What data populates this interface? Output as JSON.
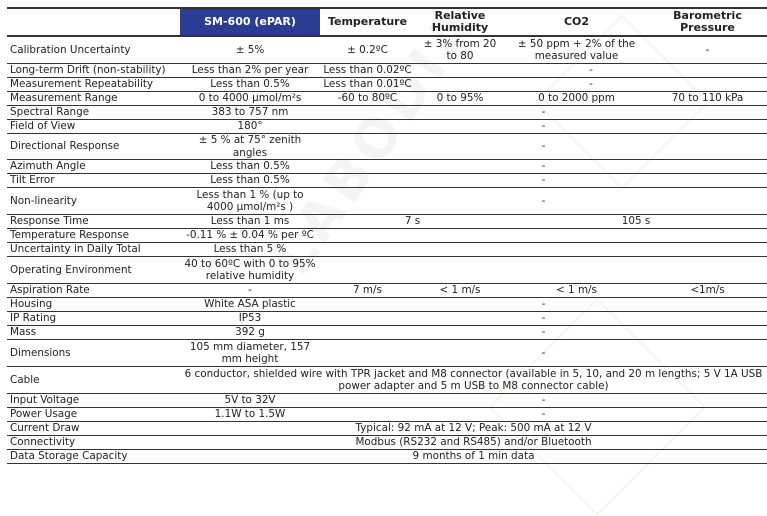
{
  "header": [
    "",
    "SM-600 (ePAR)",
    "Temperature",
    "Relative Humidity",
    "CO2",
    "Barometric Pressure"
  ],
  "rows": [
    {
      "label": "Calibration Uncertainty",
      "tall": true,
      "cells": [
        {
          "text": "± 5%"
        },
        {
          "text": "± 0.2ºC"
        },
        {
          "text": "± 3% from 20 to 80"
        },
        {
          "text": "± 50 ppm + 2% of the measured value"
        },
        {
          "text": "-"
        }
      ]
    },
    {
      "label": "Long-term Drift (non-stability)",
      "cells": [
        {
          "text": "Less than 2% per year"
        },
        {
          "text": "Less than 0.02ºC"
        },
        {
          "text": "-",
          "span": 3
        }
      ]
    },
    {
      "label": "Measurement Repeatability",
      "cells": [
        {
          "text": "Less than 0.5%"
        },
        {
          "text": "Less than 0.01ºC"
        },
        {
          "text": "-",
          "span": 3
        }
      ]
    },
    {
      "label": "Measurement Range",
      "cells": [
        {
          "text": "0 to 4000 µmol/m²s"
        },
        {
          "text": "-60 to 80ºC"
        },
        {
          "text": "0 to 95%"
        },
        {
          "text": "0 to 2000 ppm"
        },
        {
          "text": "70 to 110 kPa"
        }
      ]
    },
    {
      "label": "Spectral Range",
      "cells": [
        {
          "text": "383 to 757 nm"
        },
        {
          "text": "-",
          "span": 4
        }
      ]
    },
    {
      "label": "Field of View",
      "cells": [
        {
          "text": "180°"
        },
        {
          "text": "-",
          "span": 4
        }
      ]
    },
    {
      "label": "Directional Response",
      "cells": [
        {
          "text": "± 5 % at 75° zenith angles"
        },
        {
          "text": "-",
          "span": 4
        }
      ]
    },
    {
      "label": "Azimuth Angle",
      "cells": [
        {
          "text": "Less than 0.5%"
        },
        {
          "text": "-",
          "span": 4
        }
      ]
    },
    {
      "label": "Tilt Error",
      "cells": [
        {
          "text": "Less than 0.5%"
        },
        {
          "text": "-",
          "span": 4
        }
      ]
    },
    {
      "label": "Non-linearity",
      "tall": true,
      "cells": [
        {
          "text": "Less than 1 % (up to 4000 µmol/m²s )"
        },
        {
          "text": "-",
          "span": 4
        }
      ]
    },
    {
      "label": "Response Time",
      "cells": [
        {
          "text": "Less than 1 ms"
        },
        {
          "text": "7 s",
          "span": 2
        },
        {
          "text": "105 s",
          "span": 2
        }
      ]
    },
    {
      "label": "Temperature Response",
      "cells": [
        {
          "text": "-0.11 % ± 0.04 % per ºC"
        },
        {
          "text": "",
          "span": 4
        }
      ]
    },
    {
      "label": "Uncertainty in Daily Total",
      "cells": [
        {
          "text": "Less than 5 %"
        },
        {
          "text": "",
          "span": 4
        }
      ]
    },
    {
      "label": "Operating Environment",
      "tall": true,
      "cells": [
        {
          "text": "40 to 60ºC with 0 to 95% relative humidity"
        },
        {
          "text": "",
          "span": 4
        }
      ]
    },
    {
      "label": "Aspiration Rate",
      "cells": [
        {
          "text": "-"
        },
        {
          "text": "7 m/s"
        },
        {
          "text": "< 1 m/s"
        },
        {
          "text": "< 1 m/s"
        },
        {
          "text": "<1m/s"
        }
      ]
    },
    {
      "label": "Housing",
      "cells": [
        {
          "text": "White ASA plastic"
        },
        {
          "text": "-",
          "span": 4
        }
      ]
    },
    {
      "label": "IP Rating",
      "cells": [
        {
          "text": "IP53"
        },
        {
          "text": "-",
          "span": 4
        }
      ]
    },
    {
      "label": "Mass",
      "cells": [
        {
          "text": "392 g"
        },
        {
          "text": "-",
          "span": 4
        }
      ]
    },
    {
      "label": "Dimensions",
      "tall": true,
      "cells": [
        {
          "text": "105 mm diameter, 157 mm height"
        },
        {
          "text": "-",
          "span": 4
        }
      ]
    },
    {
      "label": "Cable",
      "tall": true,
      "cells": [
        {
          "text": "6 conductor, shielded wire with TPR jacket and M8 connector (available in 5, 10, and 20 m lengths; 5 V 1A USB power adapter and 5 m USB to M8 connector cable)",
          "span": 5
        }
      ]
    },
    {
      "label": "Input Voltage",
      "cells": [
        {
          "text": "5V to 32V"
        },
        {
          "text": "-",
          "span": 4
        }
      ]
    },
    {
      "label": "Power Usage",
      "cells": [
        {
          "text": "1.1W to 1.5W"
        },
        {
          "text": "-",
          "span": 4
        }
      ]
    },
    {
      "label": "Current Draw",
      "cells": [
        {
          "text": "Typical: 92 mA at 12 V; Peak: 500 mA at 12 V",
          "span": 5
        }
      ]
    },
    {
      "label": "Connectivity",
      "cells": [
        {
          "text": "Modbus (RS232 and RS485) and/or Bluetooth",
          "span": 5
        }
      ]
    },
    {
      "label": "Data Storage Capacity",
      "cells": [
        {
          "text": "9 months of 1 min data",
          "span": 5
        }
      ]
    }
  ],
  "watermark": "LABODIA PRIMA",
  "colors": {
    "header_highlight": "#2b3d93",
    "rule": "#333333"
  }
}
